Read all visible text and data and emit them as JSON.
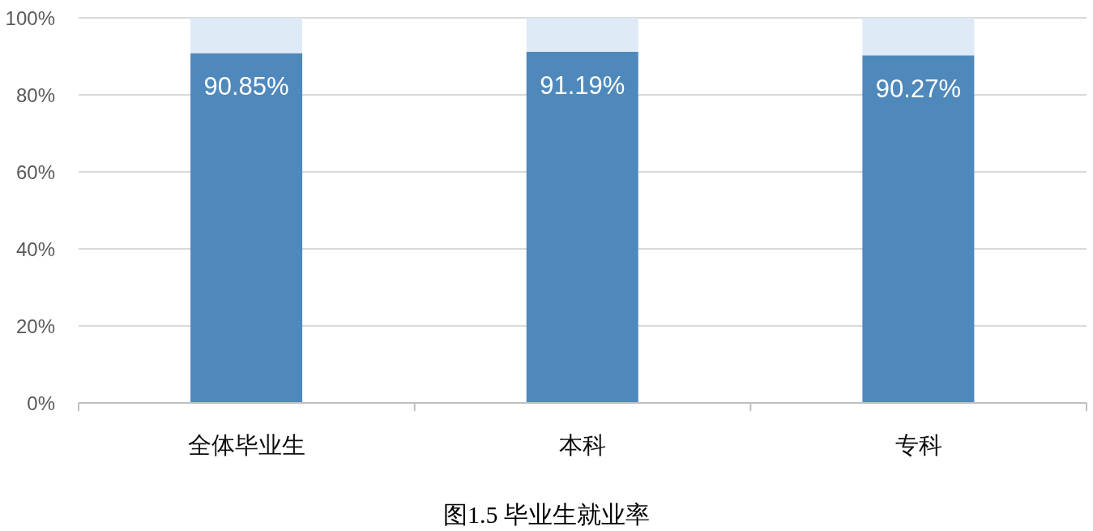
{
  "chart_data": {
    "type": "bar",
    "title": "图1.5 毕业生就业率",
    "categories": [
      "全体毕业生",
      "本科",
      "专科"
    ],
    "stacked": true,
    "series": [
      {
        "color": "#4f89bc",
        "values": [
          90.85,
          91.19,
          90.27
        ],
        "value_labels": [
          "90.85%",
          "91.19%",
          "90.27%"
        ]
      },
      {
        "color": "#deeaf6",
        "values": [
          9.15,
          8.81,
          9.73
        ]
      }
    ],
    "ylim": [
      0,
      100
    ],
    "yticks": [
      {
        "value": 0,
        "label": "0%"
      },
      {
        "value": 20,
        "label": "20%"
      },
      {
        "value": 40,
        "label": "40%"
      },
      {
        "value": 60,
        "label": "60%"
      },
      {
        "value": 80,
        "label": "80%"
      },
      {
        "value": 100,
        "label": "100%"
      }
    ],
    "grid": "y"
  }
}
